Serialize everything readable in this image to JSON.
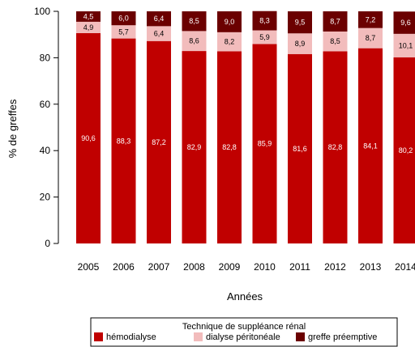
{
  "chart_data": {
    "type": "bar",
    "stacked": true,
    "categories": [
      "2005",
      "2006",
      "2007",
      "2008",
      "2009",
      "2010",
      "2011",
      "2012",
      "2013",
      "2014"
    ],
    "series": [
      {
        "name": "hémodialyse",
        "color": "#c00000",
        "values": [
          90.6,
          88.3,
          87.2,
          82.9,
          82.8,
          85.9,
          81.6,
          82.8,
          84.1,
          80.2
        ],
        "labels": [
          "90,6",
          "88,3",
          "87,2",
          "82,9",
          "82,8",
          "85,9",
          "81,6",
          "82,8",
          "84,1",
          "80,2"
        ]
      },
      {
        "name": "dialyse péritonéale",
        "color": "#f2bcbc",
        "values": [
          4.9,
          5.7,
          6.4,
          8.6,
          8.2,
          5.9,
          8.9,
          8.5,
          8.7,
          10.1
        ],
        "labels": [
          "4,9",
          "5,7",
          "6,4",
          "8,6",
          "8,2",
          "5,9",
          "8,9",
          "8,5",
          "8,7",
          "10,1"
        ]
      },
      {
        "name": "greffe préemptive",
        "color": "#6b0000",
        "values": [
          4.5,
          6.0,
          6.4,
          8.5,
          9.0,
          8.3,
          9.5,
          8.7,
          7.2,
          9.6
        ],
        "labels": [
          "4,5",
          "6,0",
          "6,4",
          "8,5",
          "9,0",
          "8,3",
          "9,5",
          "8,7",
          "7,2",
          "9,6"
        ]
      }
    ],
    "xlabel": "Années",
    "ylabel": "% de greffes",
    "ylim": [
      0,
      100
    ],
    "yticks": [
      0,
      20,
      40,
      60,
      80,
      100
    ],
    "ytick_labels": [
      "0",
      "20",
      "40",
      "60",
      "80",
      "100"
    ],
    "legend": {
      "title": "Technique de suppléance rénal",
      "position": "bottom"
    }
  }
}
